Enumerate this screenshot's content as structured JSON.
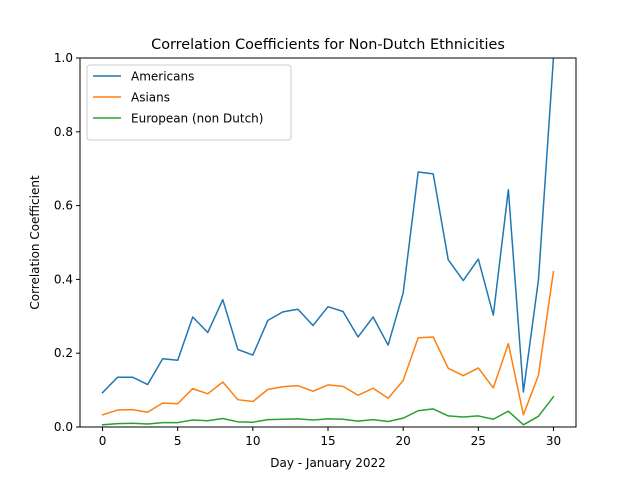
{
  "chart_data": {
    "type": "line",
    "title": "Correlation Coefficients for Non-Dutch Ethnicities",
    "xlabel": "Day - January 2022",
    "ylabel": "Correlation Coefficient",
    "xlim": [
      -1.5,
      31.5
    ],
    "ylim": [
      0,
      1.0
    ],
    "xticks": [
      0,
      5,
      10,
      15,
      20,
      25,
      30
    ],
    "yticks": [
      0.0,
      0.2,
      0.4,
      0.6,
      0.8,
      1.0
    ],
    "ytick_labels": [
      "0.0",
      "0.2",
      "0.4",
      "0.6",
      "0.8",
      "1.0"
    ],
    "grid": false,
    "legend_position": "top-left",
    "x": [
      0,
      1,
      2,
      3,
      4,
      5,
      6,
      7,
      8,
      9,
      10,
      11,
      12,
      13,
      14,
      15,
      16,
      17,
      18,
      19,
      20,
      21,
      22,
      23,
      24,
      25,
      26,
      27,
      28,
      29,
      30
    ],
    "series": [
      {
        "name": "Americans",
        "color": "#1f77b4",
        "values": [
          0.093,
          0.135,
          0.135,
          0.115,
          0.185,
          0.181,
          0.298,
          0.256,
          0.345,
          0.21,
          0.195,
          0.289,
          0.312,
          0.319,
          0.275,
          0.326,
          0.313,
          0.244,
          0.298,
          0.222,
          0.363,
          0.691,
          0.686,
          0.453,
          0.397,
          0.455,
          0.303,
          0.643,
          0.095,
          0.398,
          1.0
        ]
      },
      {
        "name": "Asians",
        "color": "#ff7f0e",
        "values": [
          0.033,
          0.046,
          0.047,
          0.04,
          0.065,
          0.063,
          0.104,
          0.09,
          0.122,
          0.074,
          0.069,
          0.102,
          0.109,
          0.112,
          0.097,
          0.114,
          0.11,
          0.086,
          0.105,
          0.078,
          0.126,
          0.242,
          0.244,
          0.159,
          0.139,
          0.16,
          0.106,
          0.226,
          0.033,
          0.14,
          0.421
        ]
      },
      {
        "name": "European (non Dutch)",
        "color": "#2ca02c",
        "values": [
          0.006,
          0.009,
          0.01,
          0.008,
          0.012,
          0.012,
          0.019,
          0.017,
          0.023,
          0.014,
          0.013,
          0.02,
          0.021,
          0.022,
          0.019,
          0.022,
          0.021,
          0.016,
          0.02,
          0.015,
          0.024,
          0.044,
          0.049,
          0.03,
          0.027,
          0.03,
          0.021,
          0.043,
          0.006,
          0.029,
          0.082
        ]
      }
    ]
  }
}
